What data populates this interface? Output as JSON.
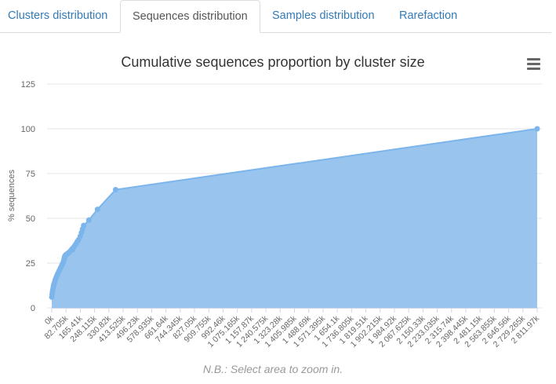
{
  "tabs": [
    {
      "label": "Clusters distribution",
      "active": false
    },
    {
      "label": "Sequences distribution",
      "active": true
    },
    {
      "label": "Samples distribution",
      "active": false
    },
    {
      "label": "Rarefaction",
      "active": false
    }
  ],
  "note": "N.B.: Select area to zoom in.",
  "colors": {
    "area_fill": "#98c4ee",
    "line": "#7cb5ec",
    "grid": "#e6e6e6",
    "tab_link": "#337ab7"
  },
  "icons": {
    "menu": "hamburger-menu-icon"
  },
  "chart_data": {
    "type": "area",
    "title": "Cumulative sequences proportion by cluster size",
    "xlabel": "",
    "ylabel": "% sequences",
    "xlim": [
      0,
      2811970
    ],
    "ylim": [
      0,
      125
    ],
    "y_ticks": [
      0,
      25,
      50,
      75,
      100,
      125
    ],
    "x_ticks": [
      0,
      82705,
      165410,
      248115,
      330820,
      413525,
      496230,
      578935,
      661640,
      744345,
      827050,
      909755,
      992460,
      1075165,
      1157870,
      1240575,
      1323280,
      1405985,
      1488690,
      1571395,
      1654100,
      1736805,
      1819510,
      1902215,
      1984920,
      2067625,
      2150330,
      2233035,
      2315740,
      2398445,
      2481150,
      2563855,
      2646560,
      2729265,
      2811970
    ],
    "x_tick_labels": [
      "0k",
      "82.705k",
      "165.41k",
      "248.115k",
      "330.82k",
      "413.525k",
      "496.23k",
      "578.935k",
      "661.64k",
      "744.345k",
      "827.05k",
      "909.755k",
      "992.46k",
      "1 075.165k",
      "1 157.87k",
      "1 240.575k",
      "1 323.28k",
      "1 405.985k",
      "1 488.69k",
      "1 571.395k",
      "1 654.1k",
      "1 736.805k",
      "1 819.51k",
      "1 902.215k",
      "1 984.92k",
      "2 067.625k",
      "2 150.33k",
      "2 233.035k",
      "2 315.74k",
      "2 398.445k",
      "2 481.15k",
      "2 563.855k",
      "2 646.56k",
      "2 729.265k",
      "2 811.97k"
    ],
    "grid": true,
    "legend": "none",
    "series": [
      {
        "x": [
          0,
          2000,
          4000,
          6000,
          8000,
          10000,
          12000,
          14000,
          17000,
          20000,
          24000,
          28000,
          32000,
          37000,
          42000,
          47000,
          52000,
          57000,
          62000,
          67000,
          70000,
          72000,
          74000,
          77000,
          80000,
          83000,
          86000,
          90000,
          95000,
          100000,
          110000,
          118000,
          122000,
          128000,
          135000,
          142000,
          148000,
          155000,
          165000,
          172000,
          178000,
          185000,
          215000,
          265000,
          370000,
          2811970
        ],
        "y": [
          6,
          7.5,
          9,
          10,
          11,
          12,
          13,
          13.5,
          14.5,
          15.5,
          16.5,
          17.5,
          18.5,
          19.5,
          20.5,
          21.5,
          22.5,
          23.5,
          24.5,
          25.5,
          26.5,
          27.5,
          28.5,
          29,
          29.5,
          29.5,
          30,
          30,
          30.5,
          31,
          32,
          33,
          32.5,
          34,
          35,
          36,
          37,
          38,
          40,
          42,
          44,
          46,
          49,
          55,
          66,
          100
        ]
      }
    ]
  }
}
